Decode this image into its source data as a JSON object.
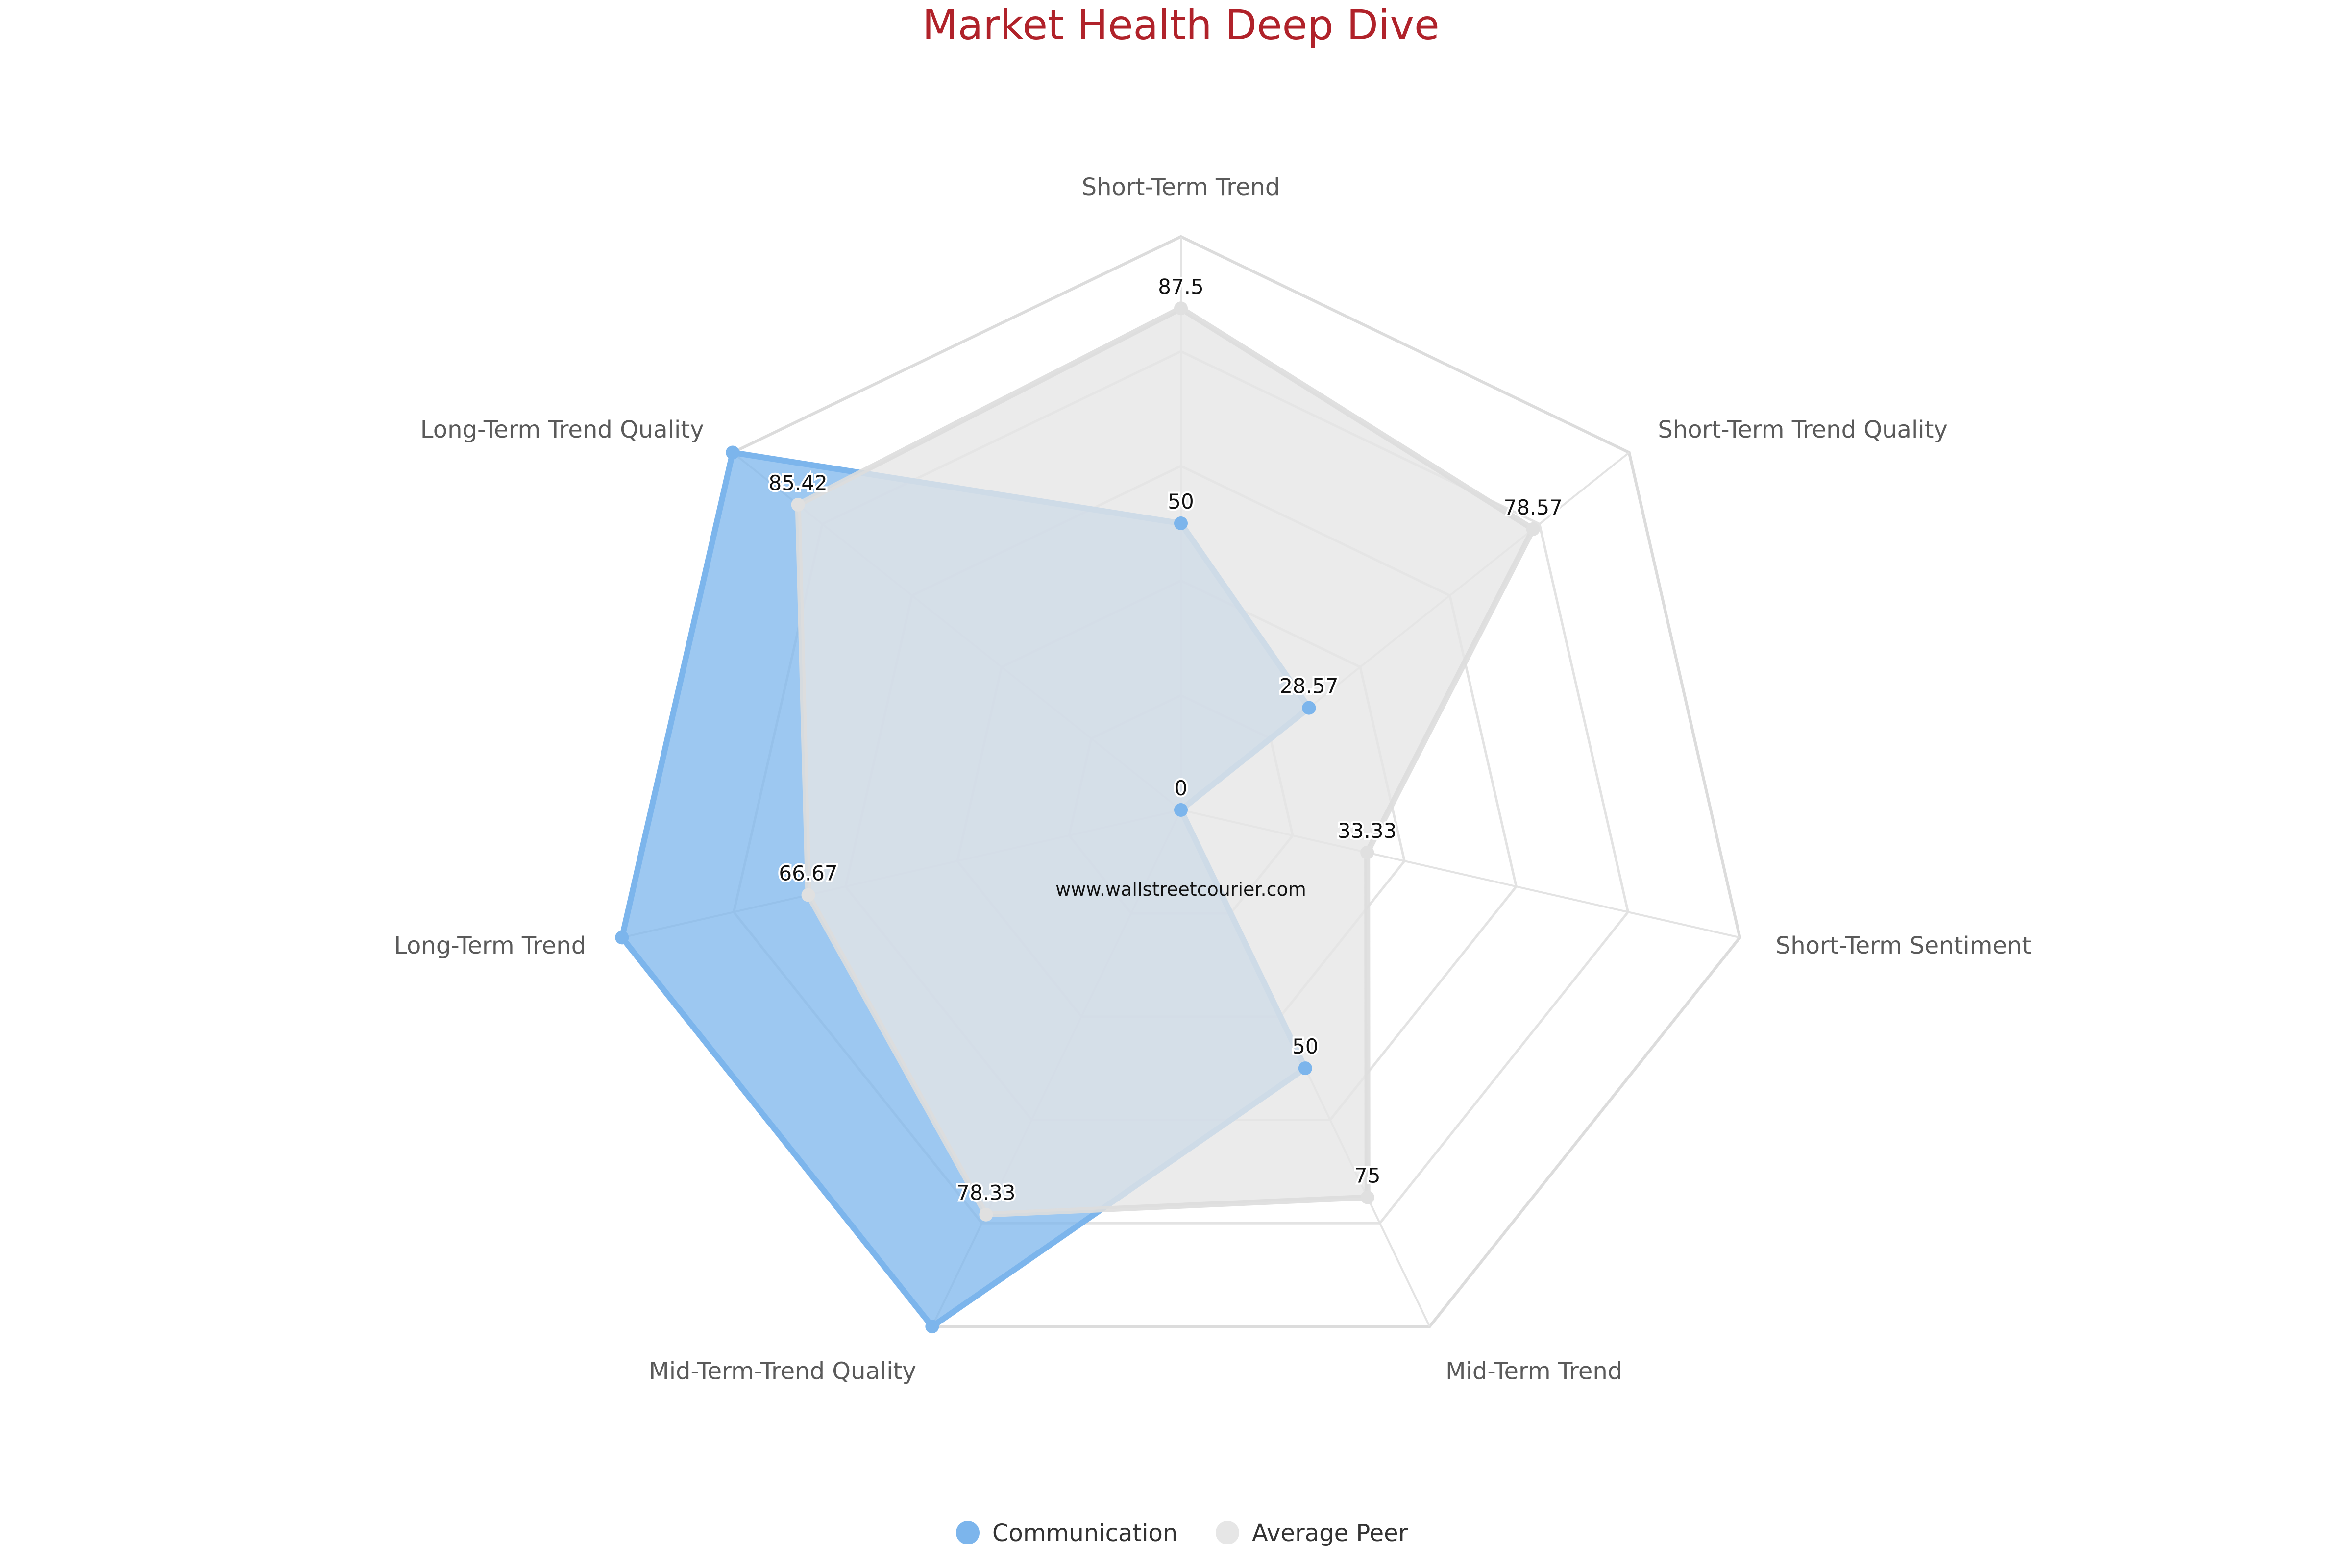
{
  "chart_data": {
    "type": "radar",
    "title": "Market Health Deep Dive",
    "watermark": "www.wallstreetcourier.com",
    "axes": [
      "Short-Term Trend",
      "Short-Term Trend Quality",
      "Short-Term Sentiment",
      "Mid-Term Trend",
      "Mid-Term-Trend Quality",
      "Long-Term Trend",
      "Long-Term Trend Quality"
    ],
    "range": [
      0,
      100
    ],
    "grid": true,
    "legend_position": "bottom",
    "series": [
      {
        "name": "Communication",
        "color": "#7cb5ec",
        "values": [
          50,
          28.57,
          0,
          50,
          100,
          100,
          100
        ],
        "labeled_values": [
          "50",
          "28.57",
          "0",
          "50",
          null,
          null,
          null
        ]
      },
      {
        "name": "Average Peer",
        "color": "#e6e6e6",
        "values": [
          87.5,
          78.57,
          33.33,
          75,
          78.33,
          66.67,
          85.42
        ],
        "labeled_values": [
          "87.5",
          "78.57",
          "33.33",
          "75",
          "78.33",
          "66.67",
          "85.42"
        ]
      }
    ]
  }
}
